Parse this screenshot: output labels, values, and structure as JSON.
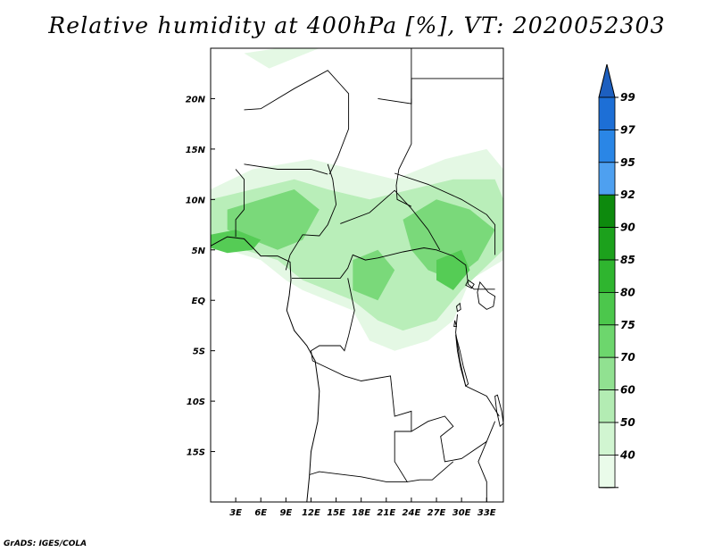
{
  "title": "Relative humidity at 400hPa [%], VT: 2020052303",
  "credit": "GrADS: IGES/COLA",
  "map": {
    "lon_range": [
      0,
      35
    ],
    "lat_range": [
      -20,
      25
    ],
    "lon_ticks": [
      {
        "value": 3,
        "label": "3E"
      },
      {
        "value": 6,
        "label": "6E"
      },
      {
        "value": 9,
        "label": "9E"
      },
      {
        "value": 12,
        "label": "12E"
      },
      {
        "value": 15,
        "label": "15E"
      },
      {
        "value": 18,
        "label": "18E"
      },
      {
        "value": 21,
        "label": "21E"
      },
      {
        "value": 24,
        "label": "24E"
      },
      {
        "value": 27,
        "label": "27E"
      },
      {
        "value": 30,
        "label": "30E"
      },
      {
        "value": 33,
        "label": "33E"
      }
    ],
    "lat_ticks": [
      {
        "value": 20,
        "label": "20N"
      },
      {
        "value": 15,
        "label": "15N"
      },
      {
        "value": 10,
        "label": "10N"
      },
      {
        "value": 5,
        "label": "5N"
      },
      {
        "value": 0,
        "label": "EQ"
      },
      {
        "value": -5,
        "label": "5S"
      },
      {
        "value": -10,
        "label": "10S"
      },
      {
        "value": -15,
        "label": "15S"
      }
    ],
    "humid_regions": [
      {
        "level": 40,
        "points": [
          [
            0,
            11
          ],
          [
            5,
            13
          ],
          [
            12,
            14
          ],
          [
            17,
            13
          ],
          [
            22,
            12
          ],
          [
            28,
            14
          ],
          [
            33,
            15
          ],
          [
            35,
            13
          ],
          [
            35,
            4
          ],
          [
            31,
            2
          ],
          [
            29,
            -2
          ],
          [
            26,
            -4
          ],
          [
            22,
            -5
          ],
          [
            19,
            -4
          ],
          [
            17,
            -1
          ],
          [
            14,
            0
          ],
          [
            11,
            1
          ],
          [
            9,
            2
          ],
          [
            6,
            4
          ],
          [
            2,
            5
          ],
          [
            0,
            5
          ]
        ]
      },
      {
        "level": 40,
        "points": [
          [
            4,
            24.5
          ],
          [
            7,
            23
          ],
          [
            10,
            24
          ],
          [
            13,
            25
          ],
          [
            8,
            25
          ]
        ]
      },
      {
        "level": 60,
        "points": [
          [
            0,
            10
          ],
          [
            5,
            11
          ],
          [
            10,
            12
          ],
          [
            14,
            11
          ],
          [
            19,
            10
          ],
          [
            24,
            11
          ],
          [
            29,
            12
          ],
          [
            34,
            12
          ],
          [
            35,
            10
          ],
          [
            35,
            5
          ],
          [
            30,
            1
          ],
          [
            27,
            -2
          ],
          [
            23,
            -3
          ],
          [
            20,
            -2
          ],
          [
            17,
            0
          ],
          [
            14,
            1
          ],
          [
            11,
            2
          ],
          [
            8,
            4
          ],
          [
            4,
            5
          ],
          [
            0,
            6
          ]
        ]
      },
      {
        "level": 75,
        "points": [
          [
            2,
            9
          ],
          [
            6,
            10
          ],
          [
            10,
            11
          ],
          [
            13,
            9
          ],
          [
            11,
            6
          ],
          [
            8,
            5
          ],
          [
            5,
            6
          ],
          [
            2,
            7
          ]
        ]
      },
      {
        "level": 75,
        "points": [
          [
            23,
            8
          ],
          [
            27,
            10
          ],
          [
            31,
            9
          ],
          [
            34,
            7
          ],
          [
            32,
            4
          ],
          [
            29,
            2
          ],
          [
            26,
            3
          ],
          [
            24,
            5
          ]
        ]
      },
      {
        "level": 75,
        "points": [
          [
            17,
            4
          ],
          [
            20,
            5
          ],
          [
            22,
            3
          ],
          [
            20,
            0
          ],
          [
            17,
            1
          ]
        ]
      },
      {
        "level": 80,
        "points": [
          [
            0,
            6.5
          ],
          [
            3,
            7
          ],
          [
            6,
            6
          ],
          [
            5,
            5
          ],
          [
            2,
            4.7
          ],
          [
            0,
            5.2
          ]
        ]
      },
      {
        "level": 80,
        "points": [
          [
            27,
            4
          ],
          [
            30,
            5
          ],
          [
            31,
            3
          ],
          [
            29,
            1
          ],
          [
            27,
            2
          ]
        ]
      }
    ],
    "land": [
      [
        [
          0,
          5.4
        ],
        [
          2,
          6.3
        ],
        [
          4,
          6.1
        ],
        [
          6,
          4.4
        ],
        [
          8,
          4.4
        ],
        [
          9.5,
          3.8
        ],
        [
          9.6,
          2
        ],
        [
          9.4,
          0.5
        ],
        [
          9.1,
          -1
        ],
        [
          10,
          -3
        ],
        [
          11.5,
          -4.5
        ],
        [
          12.5,
          -6
        ],
        [
          13,
          -9
        ],
        [
          12.8,
          -12
        ],
        [
          12,
          -15
        ],
        [
          11.8,
          -17.5
        ],
        [
          11.5,
          -20
        ]
      ]
    ],
    "borders": [
      [
        [
          3,
          13
        ],
        [
          4,
          12
        ],
        [
          4,
          9
        ],
        [
          3,
          8
        ],
        [
          3,
          6.3
        ]
      ],
      [
        [
          4,
          13.5
        ],
        [
          8,
          13
        ],
        [
          12,
          13
        ],
        [
          14,
          12.5
        ]
      ],
      [
        [
          14,
          13.5
        ],
        [
          14.6,
          12
        ],
        [
          15,
          9.5
        ],
        [
          14,
          7.5
        ],
        [
          13,
          6.4
        ],
        [
          11,
          6.5
        ],
        [
          9.5,
          4.5
        ],
        [
          9,
          3
        ]
      ],
      [
        [
          9.7,
          2.2
        ],
        [
          11.3,
          2.2
        ],
        [
          15.5,
          2.2
        ],
        [
          16.4,
          3.2
        ],
        [
          17,
          4.5
        ],
        [
          18.5,
          4
        ],
        [
          20,
          4.2
        ],
        [
          23,
          4.8
        ],
        [
          25.5,
          5.2
        ],
        [
          27,
          5
        ],
        [
          29,
          4.4
        ],
        [
          30.5,
          3.5
        ],
        [
          30.8,
          1.6
        ],
        [
          31.5,
          1.1
        ],
        [
          34,
          1.1
        ]
      ],
      [
        [
          15.5,
          7.6
        ],
        [
          19,
          8.7
        ],
        [
          22,
          10.9
        ],
        [
          24,
          9.1
        ],
        [
          26,
          7
        ],
        [
          27.4,
          5
        ]
      ],
      [
        [
          14.2,
          12.5
        ],
        [
          14.5,
          13
        ],
        [
          15.2,
          14.2
        ],
        [
          16.5,
          17
        ],
        [
          16.5,
          20.5
        ],
        [
          14,
          22.8
        ],
        [
          10,
          21
        ],
        [
          6,
          19
        ],
        [
          4,
          18.9
        ]
      ],
      [
        [
          24,
          20
        ],
        [
          24,
          15.5
        ],
        [
          22.5,
          13
        ],
        [
          22.2,
          11.4
        ],
        [
          22.3,
          10
        ],
        [
          24,
          9.3
        ]
      ],
      [
        [
          24,
          19.5
        ],
        [
          24,
          22
        ],
        [
          25,
          22
        ],
        [
          35,
          22
        ]
      ],
      [
        [
          20,
          20
        ],
        [
          24,
          19.5
        ],
        [
          24,
          25
        ]
      ],
      [
        [
          22,
          12.6
        ],
        [
          26,
          11.5
        ],
        [
          30,
          10
        ],
        [
          33,
          8.5
        ],
        [
          34,
          7.5
        ],
        [
          34,
          4.5
        ]
      ],
      [
        [
          16.4,
          2.2
        ],
        [
          17.2,
          -1
        ],
        [
          16.5,
          -3.5
        ],
        [
          16,
          -5
        ],
        [
          15.5,
          -4.5
        ],
        [
          13,
          -4.5
        ],
        [
          12,
          -5
        ],
        [
          12.2,
          -6
        ]
      ],
      [
        [
          29.5,
          -1.4
        ],
        [
          29.3,
          -3.2
        ],
        [
          29.8,
          -6
        ],
        [
          30.5,
          -8.5
        ],
        [
          33,
          -9.5
        ],
        [
          34.5,
          -11.5
        ]
      ],
      [
        [
          12.2,
          -6
        ],
        [
          16,
          -7.5
        ],
        [
          18,
          -8
        ],
        [
          21.5,
          -7.5
        ],
        [
          22,
          -11.5
        ],
        [
          24,
          -11
        ],
        [
          24,
          -13
        ],
        [
          22,
          -13
        ],
        [
          22,
          -16
        ],
        [
          23.5,
          -18
        ],
        [
          21,
          -18
        ],
        [
          18,
          -17.5
        ],
        [
          13,
          -17
        ],
        [
          11.8,
          -17.3
        ]
      ],
      [
        [
          24,
          -13
        ],
        [
          26,
          -12
        ],
        [
          28,
          -11.5
        ],
        [
          29,
          -12.5
        ],
        [
          27.5,
          -13.5
        ],
        [
          28,
          -16
        ],
        [
          30,
          -15.7
        ],
        [
          33,
          -14
        ],
        [
          34,
          -12
        ]
      ],
      [
        [
          23.5,
          -18
        ],
        [
          25,
          -17.8
        ],
        [
          26.5,
          -17.8
        ],
        [
          29,
          -16
        ]
      ],
      [
        [
          33,
          -14
        ],
        [
          32,
          -16
        ],
        [
          33,
          -18
        ],
        [
          33,
          -20
        ]
      ]
    ],
    "lakes": [
      [
        [
          32.2,
          1.8
        ],
        [
          33.2,
          0.8
        ],
        [
          34,
          0.4
        ],
        [
          33.8,
          -0.6
        ],
        [
          33,
          -0.9
        ],
        [
          32.1,
          -0.3
        ],
        [
          31.9,
          0.8
        ]
      ],
      [
        [
          29.3,
          -3.4
        ],
        [
          29.8,
          -5
        ],
        [
          30.2,
          -6.5
        ],
        [
          30.8,
          -8.3
        ],
        [
          30.5,
          -8.5
        ],
        [
          29.9,
          -6.7
        ],
        [
          29.5,
          -5
        ]
      ],
      [
        [
          34.3,
          -9.4
        ],
        [
          34.8,
          -11
        ],
        [
          35,
          -12.2
        ],
        [
          34.6,
          -12.5
        ],
        [
          34.2,
          -11
        ],
        [
          34,
          -9.5
        ]
      ],
      [
        [
          30.8,
          2
        ],
        [
          31.5,
          1.6
        ],
        [
          31.2,
          1.2
        ],
        [
          30.5,
          1.5
        ]
      ],
      [
        [
          29.4,
          -0.6
        ],
        [
          29.8,
          -0.3
        ],
        [
          29.9,
          -0.9
        ],
        [
          29.5,
          -1.1
        ]
      ],
      [
        [
          29.2,
          -2
        ],
        [
          29.4,
          -2.6
        ],
        [
          29.1,
          -2.6
        ]
      ]
    ]
  },
  "colorbar": {
    "levels": [
      {
        "label": "99",
        "color": "#1d6fd6"
      },
      {
        "label": "97",
        "color": "#2a86e6"
      },
      {
        "label": "95",
        "color": "#4ea0f0"
      },
      {
        "label": "92",
        "color": "#0d8a0d"
      },
      {
        "label": "90",
        "color": "#1ca11c"
      },
      {
        "label": "85",
        "color": "#2fb52f"
      },
      {
        "label": "80",
        "color": "#4cc74c"
      },
      {
        "label": "75",
        "color": "#6dd66d"
      },
      {
        "label": "70",
        "color": "#91e191"
      },
      {
        "label": "60",
        "color": "#b3ecb3"
      },
      {
        "label": "50",
        "color": "#d1f5d1"
      },
      {
        "label": "40",
        "color": "#eafbea"
      }
    ],
    "top_arrow_color": "#1d5fbf",
    "bottom_arrow_color": "#ffffff"
  },
  "fill_colors": {
    "40": "#e4f8e4",
    "60": "#b9eeb9",
    "75": "#7ad97a",
    "80": "#55cc55"
  }
}
